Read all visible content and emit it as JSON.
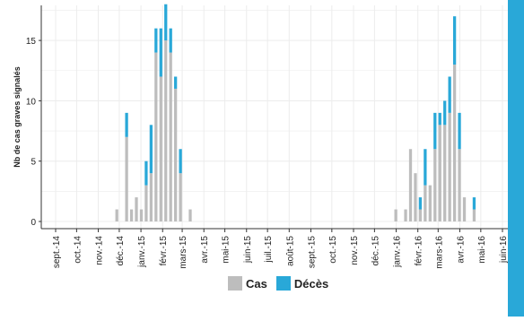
{
  "chart_data": {
    "type": "bar",
    "stacked": true,
    "ylabel": "Nb de cas graves signalés",
    "ylim": [
      0,
      18.5
    ],
    "yticks": [
      0,
      5,
      10,
      15
    ],
    "xlabel": "",
    "grid": true,
    "legend_position": "bottom",
    "colors": {
      "Cas": "#bdbdbd",
      "Décès": "#29a8d8",
      "grid": "#ececec",
      "background": "#ffffff"
    },
    "x_tick_labels": [
      "sept.-14",
      "oct.-14",
      "nov.-14",
      "déc.-14",
      "janv.-15",
      "févr.-15",
      "mars-15",
      "avr.-15",
      "mai-15",
      "juin-15",
      "juil.-15",
      "août-15",
      "sept.-15",
      "oct.-15",
      "nov.-15",
      "déc.-15",
      "janv.-16",
      "févr.-16",
      "mars-16",
      "avr.-16",
      "mai-16",
      "juin-16"
    ],
    "series_names": [
      "Cas",
      "Décès"
    ],
    "weeks": [
      {
        "week": "2014-11-24",
        "cas": 1,
        "deces": 0
      },
      {
        "week": "2014-12-08",
        "cas": 7,
        "deces": 2
      },
      {
        "week": "2014-12-15",
        "cas": 1,
        "deces": 0
      },
      {
        "week": "2014-12-22",
        "cas": 2,
        "deces": 0
      },
      {
        "week": "2014-12-29",
        "cas": 1,
        "deces": 0
      },
      {
        "week": "2015-01-05",
        "cas": 3,
        "deces": 2
      },
      {
        "week": "2015-01-12",
        "cas": 4,
        "deces": 4
      },
      {
        "week": "2015-01-19",
        "cas": 14,
        "deces": 2
      },
      {
        "week": "2015-01-26",
        "cas": 12,
        "deces": 4
      },
      {
        "week": "2015-02-02",
        "cas": 15,
        "deces": 3
      },
      {
        "week": "2015-02-09",
        "cas": 14,
        "deces": 2
      },
      {
        "week": "2015-02-16",
        "cas": 11,
        "deces": 1
      },
      {
        "week": "2015-02-23",
        "cas": 4,
        "deces": 2
      },
      {
        "week": "2015-03-09",
        "cas": 1,
        "deces": 0
      },
      {
        "week": "2015-12-28",
        "cas": 1,
        "deces": 0
      },
      {
        "week": "2016-01-11",
        "cas": 1,
        "deces": 0
      },
      {
        "week": "2016-01-18",
        "cas": 6,
        "deces": 0
      },
      {
        "week": "2016-01-25",
        "cas": 4,
        "deces": 0
      },
      {
        "week": "2016-02-01",
        "cas": 1,
        "deces": 1
      },
      {
        "week": "2016-02-08",
        "cas": 3,
        "deces": 3
      },
      {
        "week": "2016-02-15",
        "cas": 3,
        "deces": 0
      },
      {
        "week": "2016-02-22",
        "cas": 6,
        "deces": 3
      },
      {
        "week": "2016-02-29",
        "cas": 8,
        "deces": 1
      },
      {
        "week": "2016-03-07",
        "cas": 8,
        "deces": 2
      },
      {
        "week": "2016-03-14",
        "cas": 9,
        "deces": 3
      },
      {
        "week": "2016-03-21",
        "cas": 13,
        "deces": 4
      },
      {
        "week": "2016-03-28",
        "cas": 6,
        "deces": 3
      },
      {
        "week": "2016-04-04",
        "cas": 2,
        "deces": 0
      },
      {
        "week": "2016-04-18",
        "cas": 1,
        "deces": 1
      }
    ]
  },
  "legend": {
    "cas_label": "Cas",
    "deces_label": "Décès"
  }
}
